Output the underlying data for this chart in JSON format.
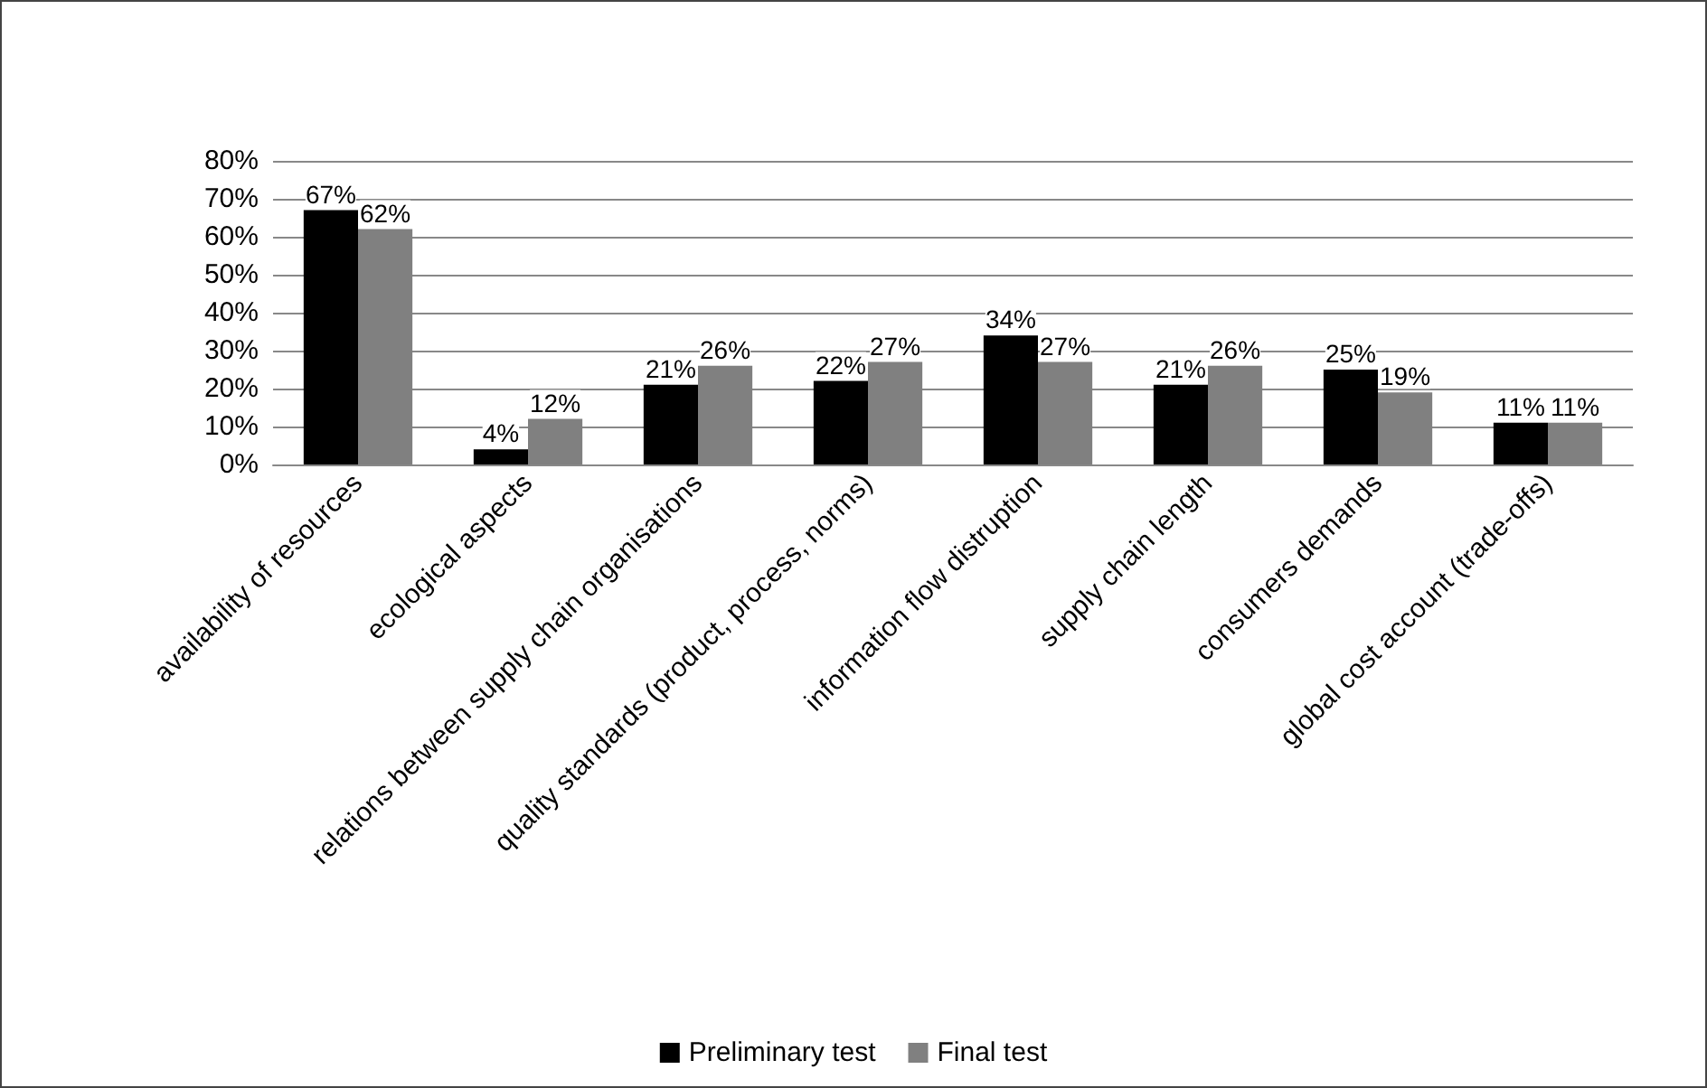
{
  "chart_data": {
    "type": "bar",
    "categories": [
      "availability of resources",
      "ecological aspects",
      "relations between supply chain organisations",
      "quality standards (product, process, norms)",
      "information flow distruption",
      "supply chain length",
      "consumers demands",
      "global cost account (trade-offs)"
    ],
    "series": [
      {
        "name": "Preliminary test",
        "color": "#000000",
        "values": [
          67,
          4,
          21,
          22,
          34,
          21,
          25,
          11
        ],
        "value_labels": [
          "67%",
          "4%",
          "21%",
          "22%",
          "34%",
          "21%",
          "25%",
          "11%"
        ]
      },
      {
        "name": "Final test",
        "color": "#808080",
        "values": [
          62,
          12,
          26,
          27,
          27,
          26,
          19,
          11
        ],
        "value_labels": [
          "62%",
          "12%",
          "26%",
          "27%",
          "27%",
          "26%",
          "19%",
          "11%"
        ]
      }
    ],
    "ylim": [
      0,
      80
    ],
    "yticks": [
      {
        "value": 0,
        "label": "0%"
      },
      {
        "value": 10,
        "label": "10%"
      },
      {
        "value": 20,
        "label": "20%"
      },
      {
        "value": 30,
        "label": "30%"
      },
      {
        "value": 40,
        "label": "40%"
      },
      {
        "value": 50,
        "label": "50%"
      },
      {
        "value": 60,
        "label": "60%"
      },
      {
        "value": 70,
        "label": "70%"
      },
      {
        "value": 80,
        "label": "80%"
      }
    ],
    "grid": "y",
    "legend": "bottom"
  }
}
